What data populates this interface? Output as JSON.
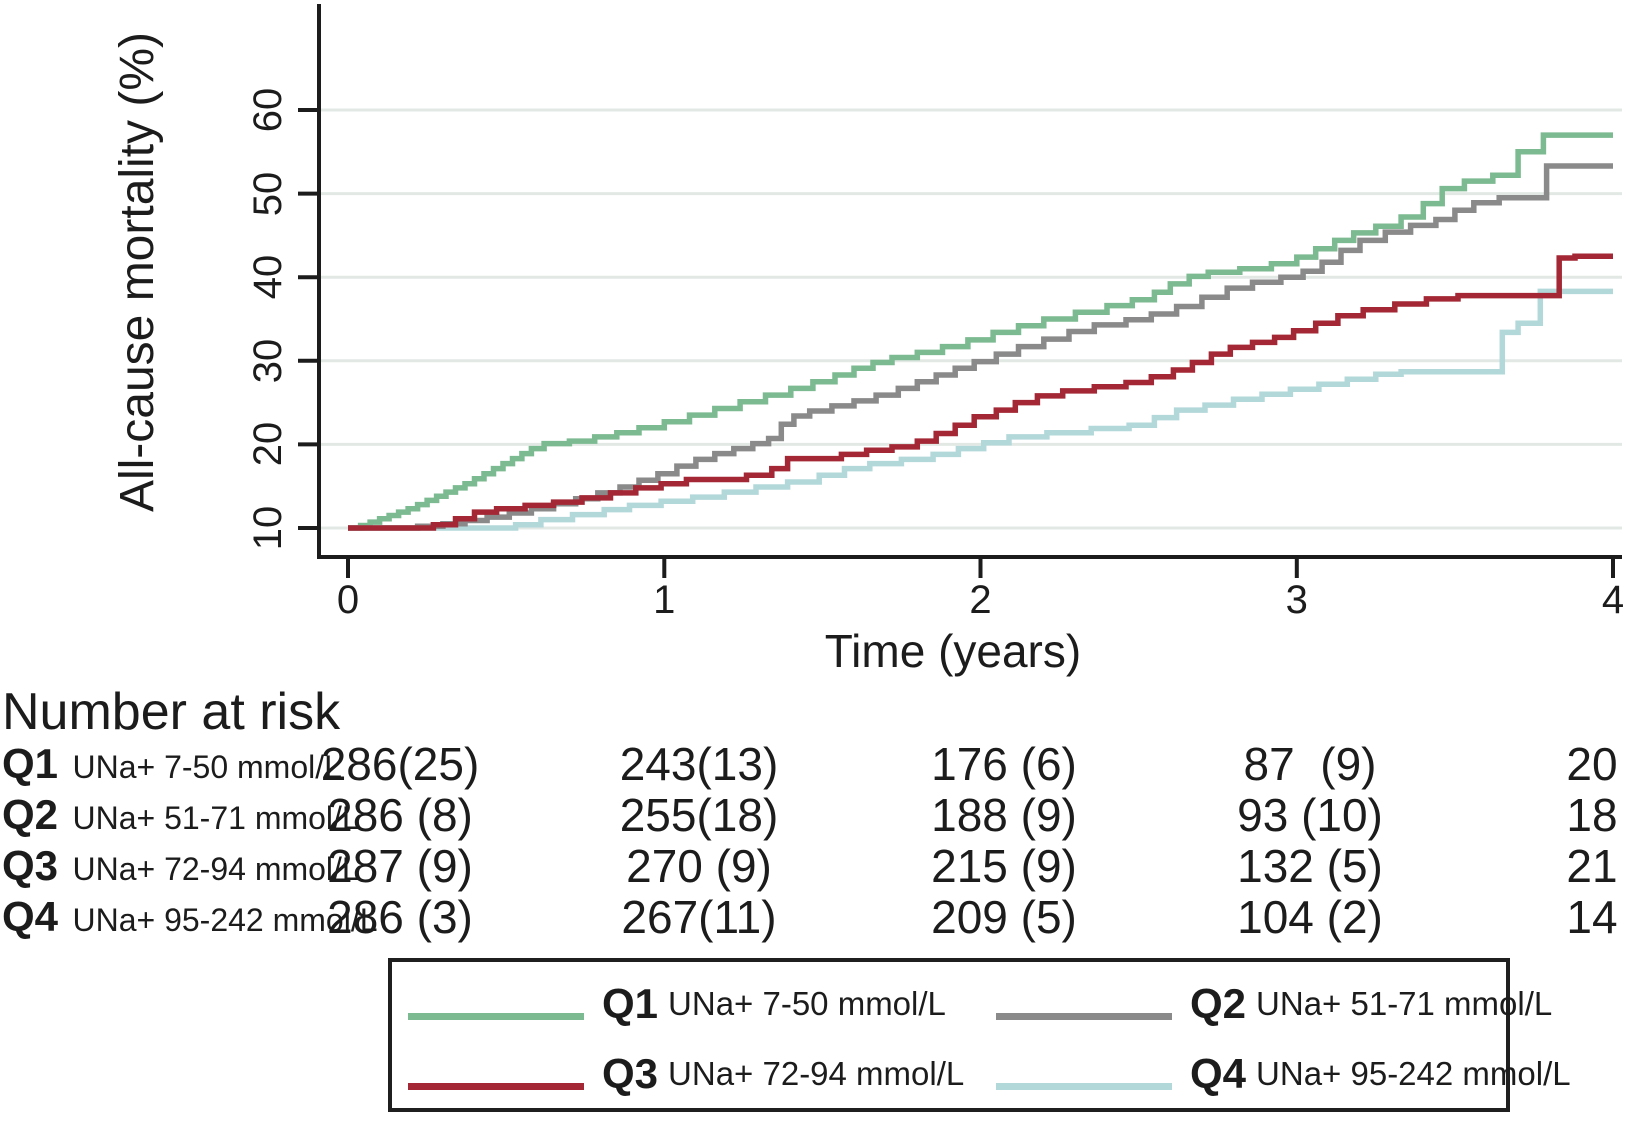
{
  "colors": {
    "q1_green": "#7cba91",
    "q2_gray": "#8a8a8a",
    "q3_red": "#a32734",
    "q4_blue": "#b3d8da",
    "grid": "#e2e9e5",
    "axis": "#1c1c1c"
  },
  "risk_table": {
    "title": "Number at risk",
    "rows": [
      {
        "q": "Q1",
        "desc": "UNa+ 7-50 mmol/L",
        "values": [
          "286(25)",
          "243(13)",
          "176 (6)",
          "87  (9)",
          "20"
        ]
      },
      {
        "q": "Q2",
        "desc": "UNa+ 51-71 mmol/L",
        "values": [
          "286 (8)",
          "255(18)",
          "188 (9)",
          "93 (10)",
          "18"
        ]
      },
      {
        "q": "Q3",
        "desc": "UNa+ 72-94 mmol/L",
        "values": [
          "287 (9)",
          "270 (9)",
          "215 (9)",
          "132 (5)",
          "21"
        ]
      },
      {
        "q": "Q4",
        "desc": "UNa+ 95-242 mmol/L",
        "values": [
          "286 (3)",
          "267(11)",
          "209 (5)",
          "104 (2)",
          "14"
        ]
      }
    ]
  },
  "legend": {
    "items": [
      {
        "q": "Q1",
        "desc": "UNa+ 7-50 mmol/L",
        "color": "#7cba91"
      },
      {
        "q": "Q2",
        "desc": "UNa+ 51-71 mmol/L",
        "color": "#8a8a8a"
      },
      {
        "q": "Q3",
        "desc": "UNa+ 72-94 mmol/L",
        "color": "#a32734"
      },
      {
        "q": "Q4",
        "desc": "UNa+ 95-242 mmol/L",
        "color": "#b3d8da"
      }
    ]
  },
  "chart_data": {
    "type": "line",
    "subtype": "kaplan-meier-step",
    "title": "",
    "xlabel": "Time (years)",
    "ylabel": "All-cause mortality (%)",
    "xlim": [
      0,
      4
    ],
    "ylim": [
      10,
      60
    ],
    "x_ticks": [
      0,
      1,
      2,
      3,
      4
    ],
    "y_ticks": [
      10,
      20,
      30,
      40,
      50,
      60
    ],
    "grid": "horizontal",
    "legend_position": "bottom-box",
    "series": [
      {
        "name": "Q1 UNa+ 7-50 mmol/L",
        "color": "#7cba91",
        "points": [
          [
            0,
            10
          ],
          [
            0.04,
            10.3
          ],
          [
            0.07,
            10.7
          ],
          [
            0.1,
            11.1
          ],
          [
            0.13,
            11.5
          ],
          [
            0.16,
            11.9
          ],
          [
            0.19,
            12.3
          ],
          [
            0.22,
            12.8
          ],
          [
            0.25,
            13.3
          ],
          [
            0.28,
            13.8
          ],
          [
            0.31,
            14.3
          ],
          [
            0.34,
            14.8
          ],
          [
            0.37,
            15.3
          ],
          [
            0.4,
            15.9
          ],
          [
            0.43,
            16.5
          ],
          [
            0.46,
            17.1
          ],
          [
            0.49,
            17.7
          ],
          [
            0.52,
            18.3
          ],
          [
            0.55,
            18.9
          ],
          [
            0.58,
            19.5
          ],
          [
            0.62,
            20.1
          ],
          [
            0.7,
            20.4
          ],
          [
            0.78,
            20.9
          ],
          [
            0.85,
            21.4
          ],
          [
            0.92,
            22.0
          ],
          [
            1.0,
            22.7
          ],
          [
            1.08,
            23.5
          ],
          [
            1.16,
            24.3
          ],
          [
            1.24,
            25.1
          ],
          [
            1.32,
            25.9
          ],
          [
            1.4,
            26.7
          ],
          [
            1.47,
            27.5
          ],
          [
            1.54,
            28.3
          ],
          [
            1.6,
            29.1
          ],
          [
            1.66,
            29.8
          ],
          [
            1.72,
            30.4
          ],
          [
            1.8,
            31.0
          ],
          [
            1.88,
            31.7
          ],
          [
            1.96,
            32.5
          ],
          [
            2.04,
            33.4
          ],
          [
            2.12,
            34.2
          ],
          [
            2.2,
            35.0
          ],
          [
            2.3,
            35.8
          ],
          [
            2.4,
            36.6
          ],
          [
            2.48,
            37.3
          ],
          [
            2.55,
            38.2
          ],
          [
            2.6,
            39.2
          ],
          [
            2.66,
            40.1
          ],
          [
            2.72,
            40.6
          ],
          [
            2.82,
            41.0
          ],
          [
            2.92,
            41.6
          ],
          [
            3.0,
            42.4
          ],
          [
            3.06,
            43.4
          ],
          [
            3.12,
            44.4
          ],
          [
            3.18,
            45.3
          ],
          [
            3.25,
            46.1
          ],
          [
            3.33,
            47.2
          ],
          [
            3.4,
            48.8
          ],
          [
            3.46,
            50.6
          ],
          [
            3.53,
            51.5
          ],
          [
            3.62,
            52.2
          ],
          [
            3.7,
            55.0
          ],
          [
            3.78,
            57.0
          ]
        ]
      },
      {
        "name": "Q2 UNa+ 51-71 mmol/L",
        "color": "#8a8a8a",
        "points": [
          [
            0,
            10
          ],
          [
            0.22,
            10.2
          ],
          [
            0.3,
            10.5
          ],
          [
            0.37,
            10.9
          ],
          [
            0.44,
            11.3
          ],
          [
            0.51,
            11.8
          ],
          [
            0.58,
            12.3
          ],
          [
            0.65,
            12.9
          ],
          [
            0.72,
            13.5
          ],
          [
            0.79,
            14.2
          ],
          [
            0.86,
            14.9
          ],
          [
            0.92,
            15.7
          ],
          [
            0.98,
            16.5
          ],
          [
            1.04,
            17.4
          ],
          [
            1.1,
            18.2
          ],
          [
            1.16,
            18.9
          ],
          [
            1.22,
            19.5
          ],
          [
            1.28,
            20.1
          ],
          [
            1.33,
            20.7
          ],
          [
            1.37,
            22.4
          ],
          [
            1.41,
            23.4
          ],
          [
            1.46,
            24.0
          ],
          [
            1.53,
            24.6
          ],
          [
            1.6,
            25.2
          ],
          [
            1.67,
            25.9
          ],
          [
            1.74,
            26.7
          ],
          [
            1.8,
            27.5
          ],
          [
            1.86,
            28.3
          ],
          [
            1.92,
            29.1
          ],
          [
            1.98,
            29.9
          ],
          [
            2.05,
            30.8
          ],
          [
            2.12,
            31.7
          ],
          [
            2.2,
            32.6
          ],
          [
            2.28,
            33.5
          ],
          [
            2.36,
            34.3
          ],
          [
            2.46,
            34.9
          ],
          [
            2.54,
            35.6
          ],
          [
            2.62,
            36.5
          ],
          [
            2.7,
            37.6
          ],
          [
            2.78,
            38.7
          ],
          [
            2.86,
            39.4
          ],
          [
            2.95,
            40.0
          ],
          [
            3.02,
            40.7
          ],
          [
            3.08,
            41.8
          ],
          [
            3.14,
            43.2
          ],
          [
            3.2,
            44.4
          ],
          [
            3.28,
            45.4
          ],
          [
            3.36,
            46.2
          ],
          [
            3.44,
            46.9
          ],
          [
            3.5,
            48.0
          ],
          [
            3.56,
            48.9
          ],
          [
            3.64,
            49.5
          ],
          [
            3.79,
            53.3
          ]
        ]
      },
      {
        "name": "Q3 UNa+ 72-94 mmol/L",
        "color": "#a32734",
        "points": [
          [
            0,
            10
          ],
          [
            0.27,
            10.4
          ],
          [
            0.34,
            11.1
          ],
          [
            0.4,
            11.9
          ],
          [
            0.47,
            12.3
          ],
          [
            0.56,
            12.7
          ],
          [
            0.65,
            13.1
          ],
          [
            0.74,
            13.6
          ],
          [
            0.83,
            14.2
          ],
          [
            0.91,
            14.8
          ],
          [
            0.99,
            15.3
          ],
          [
            1.07,
            15.8
          ],
          [
            1.26,
            16.3
          ],
          [
            1.34,
            17.1
          ],
          [
            1.39,
            18.3
          ],
          [
            1.56,
            18.8
          ],
          [
            1.64,
            19.3
          ],
          [
            1.72,
            19.7
          ],
          [
            1.8,
            20.4
          ],
          [
            1.86,
            21.3
          ],
          [
            1.92,
            22.3
          ],
          [
            1.98,
            23.3
          ],
          [
            2.05,
            24.1
          ],
          [
            2.11,
            25.0
          ],
          [
            2.18,
            25.8
          ],
          [
            2.26,
            26.4
          ],
          [
            2.36,
            26.9
          ],
          [
            2.46,
            27.4
          ],
          [
            2.54,
            28.1
          ],
          [
            2.61,
            28.9
          ],
          [
            2.67,
            29.8
          ],
          [
            2.73,
            30.8
          ],
          [
            2.79,
            31.6
          ],
          [
            2.86,
            32.2
          ],
          [
            2.93,
            32.8
          ],
          [
            2.99,
            33.6
          ],
          [
            3.06,
            34.5
          ],
          [
            3.13,
            35.4
          ],
          [
            3.21,
            36.1
          ],
          [
            3.31,
            36.8
          ],
          [
            3.41,
            37.4
          ],
          [
            3.51,
            37.8
          ],
          [
            3.83,
            42.3
          ],
          [
            3.88,
            42.5
          ]
        ]
      },
      {
        "name": "Q4 UNa+ 95-242 mmol/L",
        "color": "#b3d8da",
        "points": [
          [
            0,
            10
          ],
          [
            0.53,
            10.4
          ],
          [
            0.61,
            11.0
          ],
          [
            0.71,
            11.6
          ],
          [
            0.81,
            12.2
          ],
          [
            0.89,
            12.7
          ],
          [
            0.99,
            13.2
          ],
          [
            1.09,
            13.7
          ],
          [
            1.19,
            14.3
          ],
          [
            1.29,
            14.9
          ],
          [
            1.39,
            15.5
          ],
          [
            1.49,
            16.3
          ],
          [
            1.57,
            17.1
          ],
          [
            1.65,
            17.7
          ],
          [
            1.75,
            18.2
          ],
          [
            1.85,
            18.8
          ],
          [
            1.93,
            19.5
          ],
          [
            2.01,
            20.2
          ],
          [
            2.09,
            20.9
          ],
          [
            2.21,
            21.4
          ],
          [
            2.35,
            21.9
          ],
          [
            2.47,
            22.3
          ],
          [
            2.55,
            23.2
          ],
          [
            2.62,
            24.1
          ],
          [
            2.71,
            24.7
          ],
          [
            2.8,
            25.4
          ],
          [
            2.89,
            26.0
          ],
          [
            2.98,
            26.6
          ],
          [
            3.07,
            27.2
          ],
          [
            3.16,
            27.8
          ],
          [
            3.25,
            28.4
          ],
          [
            3.33,
            28.7
          ],
          [
            3.65,
            33.4
          ],
          [
            3.7,
            34.5
          ],
          [
            3.77,
            38.3
          ]
        ]
      }
    ],
    "number_at_risk": {
      "times": [
        0,
        1,
        2,
        3,
        4
      ],
      "groups": [
        {
          "name": "Q1 UNa+ 7-50 mmol/L",
          "counts": [
            286,
            243,
            176,
            87,
            20
          ],
          "censored": [
            25,
            13,
            6,
            9,
            null
          ]
        },
        {
          "name": "Q2 UNa+ 51-71 mmol/L",
          "counts": [
            286,
            255,
            188,
            93,
            18
          ],
          "censored": [
            8,
            18,
            9,
            10,
            null
          ]
        },
        {
          "name": "Q3 UNa+ 72-94 mmol/L",
          "counts": [
            287,
            270,
            215,
            132,
            21
          ],
          "censored": [
            9,
            9,
            9,
            5,
            null
          ]
        },
        {
          "name": "Q4 UNa+ 95-242 mmol/L",
          "counts": [
            286,
            267,
            209,
            104,
            14
          ],
          "censored": [
            3,
            11,
            5,
            2,
            null
          ]
        }
      ]
    }
  }
}
